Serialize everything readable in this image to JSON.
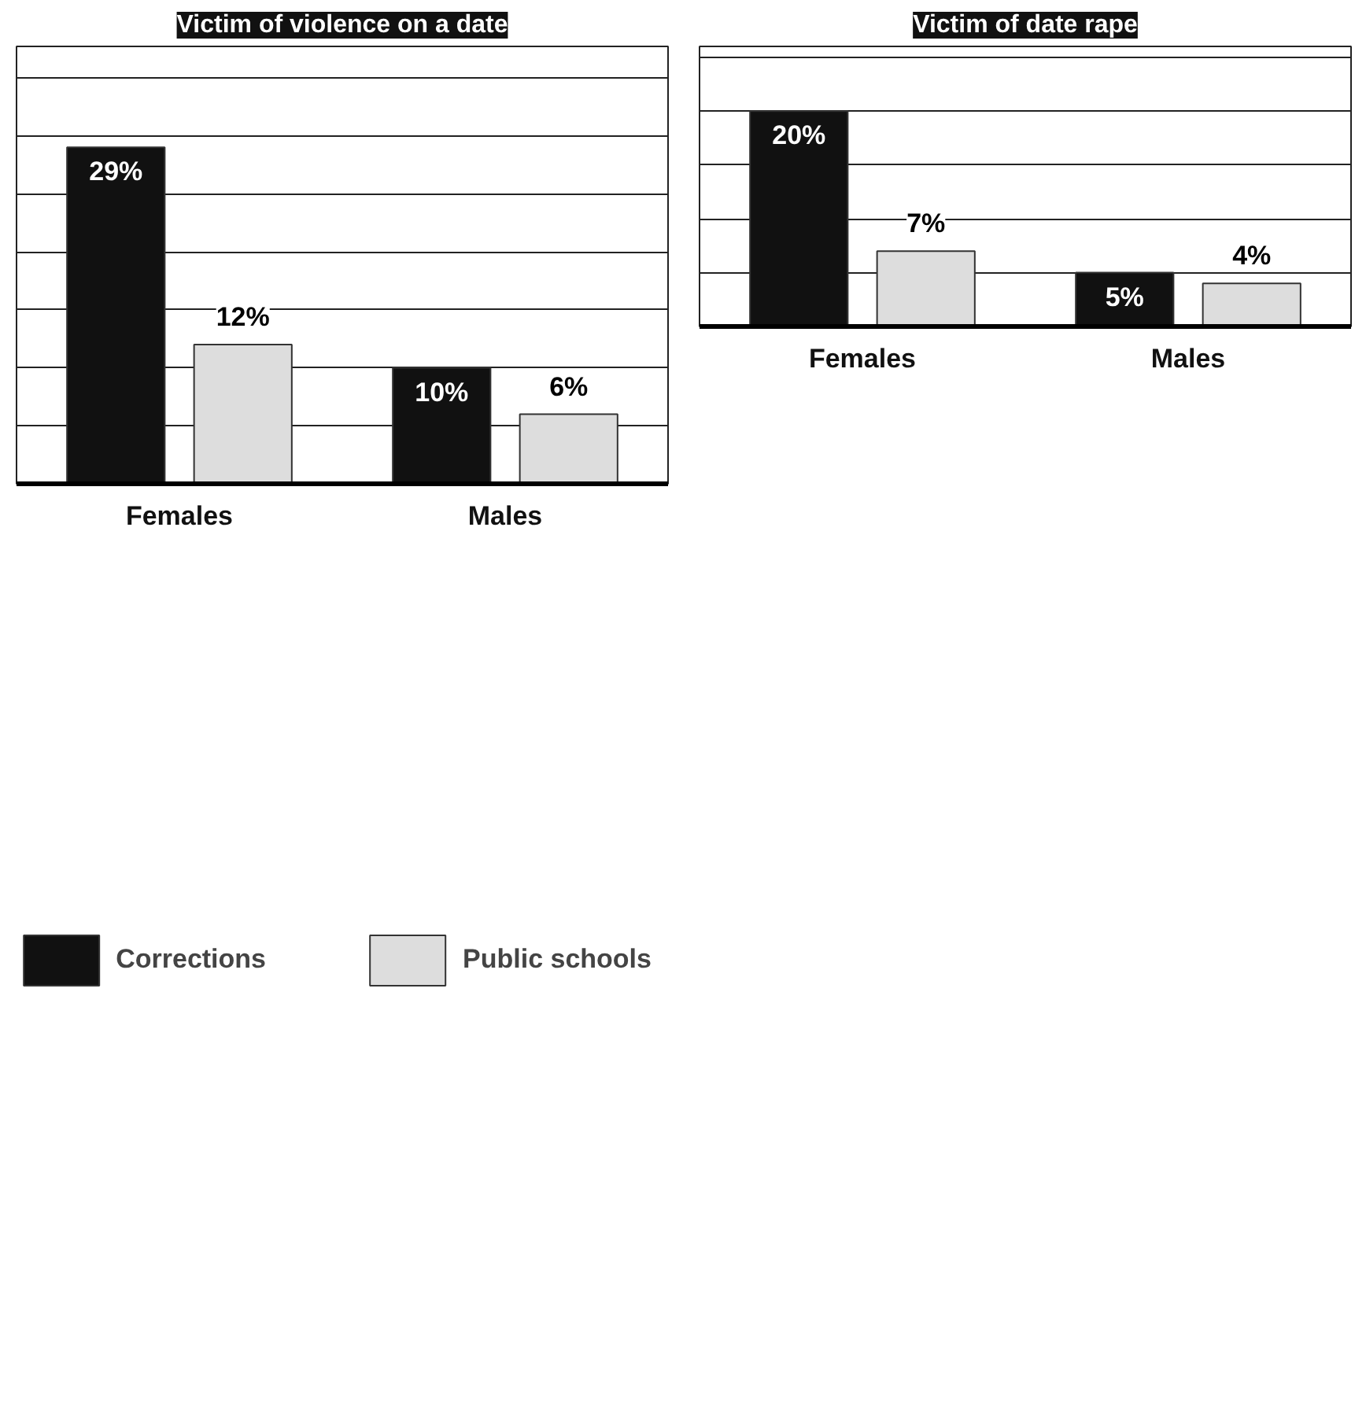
{
  "chart_data": [
    {
      "type": "bar",
      "title": "Victim of violence on a date",
      "categories": [
        "Females",
        "Males"
      ],
      "series": [
        {
          "name": "Corrections",
          "color": "#111111",
          "values": [
            29,
            10
          ],
          "value_labels": [
            "29%",
            "10%"
          ]
        },
        {
          "name": "Public schools",
          "color": "#dddddd",
          "values": [
            12,
            6
          ],
          "value_labels": [
            "12%",
            "6%"
          ]
        }
      ],
      "tick_labels": "x",
      "grid": "y",
      "legend": "bottom"
    },
    {
      "type": "bar",
      "title": "Victim of date rape",
      "categories": [
        "Females",
        "Males"
      ],
      "series": [
        {
          "color": "#111111",
          "values": [
            20,
            5
          ],
          "value_labels": [
            "20%",
            "5%"
          ]
        },
        {
          "color": "#dddddd",
          "values": [
            7,
            4
          ],
          "value_labels": [
            "7%",
            "4%"
          ]
        }
      ],
      "tick_labels": "x",
      "grid": "y"
    }
  ]
}
